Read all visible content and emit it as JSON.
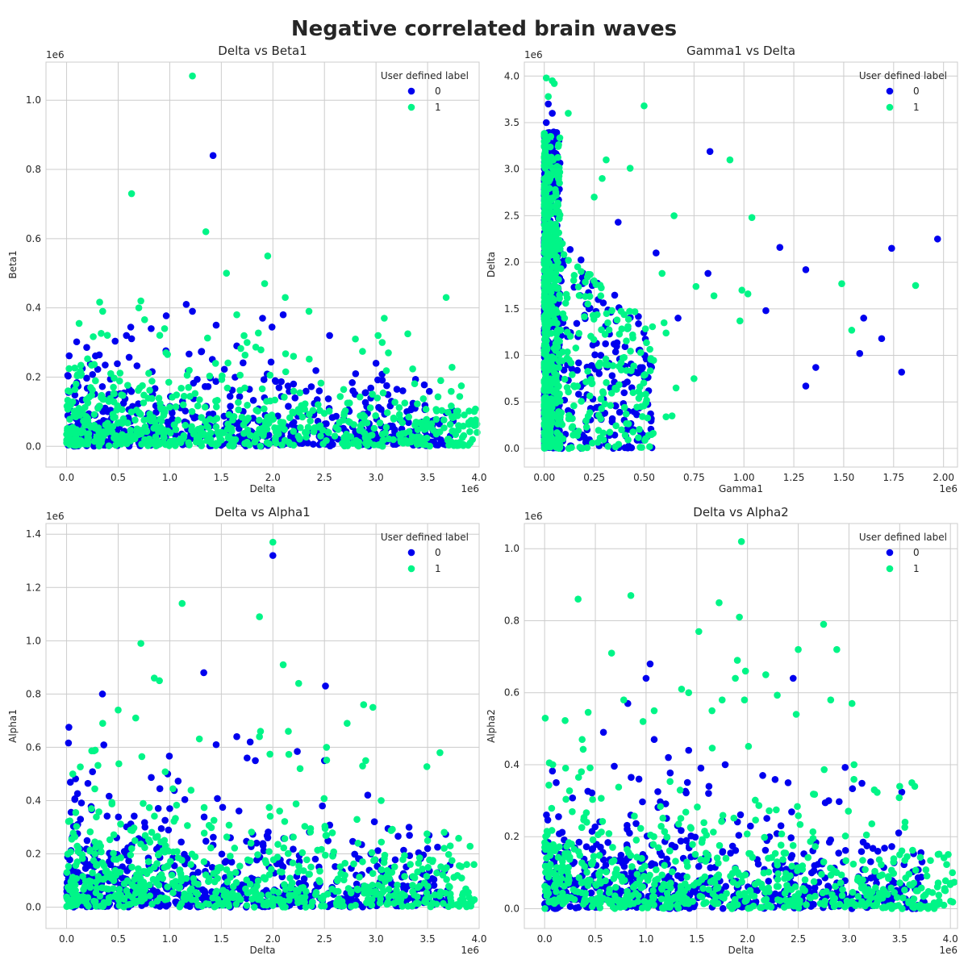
{
  "figure": {
    "title": "Negative correlated brain waves"
  },
  "colors": {
    "label_0": "#0000ee",
    "label_1": "#00f587",
    "grid": "#cccccc",
    "frame": "#cccccc"
  },
  "chart_data": [
    {
      "type": "scatter",
      "title": "Delta vs Beta1",
      "xlabel": "Delta",
      "ylabel": "Beta1",
      "x_exponent": "1e6",
      "y_exponent": "1e6",
      "xlim": [
        -0.2,
        4.0
      ],
      "ylim": [
        -0.06,
        1.11
      ],
      "xticks": [
        0.0,
        0.5,
        1.0,
        1.5,
        2.0,
        2.5,
        3.0,
        3.5,
        4.0
      ],
      "yticks": [
        0.0,
        0.2,
        0.4,
        0.6,
        0.8,
        1.0
      ],
      "grid": true,
      "legend": {
        "title": "User defined label",
        "position": "top-right",
        "entries": [
          "0",
          "1"
        ]
      },
      "series": [
        {
          "name": "0",
          "color": "#0000ee",
          "cluster": {
            "x_max": 3.75,
            "y_scale": 0.075
          },
          "points": [
            [
              1.42,
              0.84
            ],
            [
              1.16,
              0.41
            ],
            [
              1.22,
              0.39
            ],
            [
              2.1,
              0.38
            ],
            [
              1.9,
              0.37
            ],
            [
              2.55,
              0.32
            ],
            [
              0.58,
              0.32
            ],
            [
              0.82,
              0.34
            ],
            [
              1.45,
              0.35
            ],
            [
              1.65,
              0.29
            ],
            [
              3.0,
              0.24
            ],
            [
              3.15,
              0.13
            ],
            [
              3.25,
              0.05
            ],
            [
              3.35,
              0.04
            ],
            [
              3.6,
              0.04
            ],
            [
              3.72,
              0.03
            ],
            [
              3.7,
              0.01
            ],
            [
              3.3,
              0.1
            ],
            [
              2.45,
              0.16
            ],
            [
              2.2,
              0.18
            ]
          ]
        },
        {
          "name": "1",
          "color": "#00f587",
          "cluster": {
            "x_max": 3.98,
            "y_scale": 0.085
          },
          "points": [
            [
              1.22,
              1.07
            ],
            [
              0.63,
              0.73
            ],
            [
              1.35,
              0.62
            ],
            [
              1.95,
              0.55
            ],
            [
              1.55,
              0.5
            ],
            [
              1.92,
              0.47
            ],
            [
              3.68,
              0.43
            ],
            [
              2.12,
              0.43
            ],
            [
              0.72,
              0.42
            ],
            [
              0.7,
              0.4
            ],
            [
              2.35,
              0.39
            ],
            [
              0.35,
              0.39
            ],
            [
              1.65,
              0.38
            ],
            [
              3.08,
              0.37
            ],
            [
              0.95,
              0.34
            ],
            [
              1.75,
              0.3
            ],
            [
              3.02,
              0.32
            ],
            [
              3.06,
              0.3
            ],
            [
              2.8,
              0.31
            ],
            [
              3.12,
              0.27
            ],
            [
              2.2,
              0.26
            ],
            [
              3.95,
              0.07
            ],
            [
              3.98,
              0.04
            ],
            [
              3.8,
              0.06
            ],
            [
              3.5,
              0.06
            ]
          ]
        }
      ]
    },
    {
      "type": "scatter",
      "title": "Gamma1 vs Delta",
      "xlabel": "Gamma1",
      "ylabel": "Delta",
      "x_exponent": "1e6",
      "y_exponent": "1e6",
      "xlim": [
        -0.1,
        2.07
      ],
      "ylim": [
        -0.2,
        4.15
      ],
      "xticks": [
        0.0,
        0.25,
        0.5,
        0.75,
        1.0,
        1.25,
        1.5,
        1.75,
        2.0
      ],
      "yticks": [
        0.0,
        0.5,
        1.0,
        1.5,
        2.0,
        2.5,
        3.0,
        3.5,
        4.0
      ],
      "grid": true,
      "legend": {
        "title": "User defined label",
        "position": "top-right",
        "entries": [
          "0",
          "1"
        ]
      },
      "series": [
        {
          "name": "0",
          "color": "#0000ee",
          "points": [
            [
              0.83,
              3.19
            ],
            [
              1.97,
              2.25
            ],
            [
              1.18,
              2.16
            ],
            [
              1.74,
              2.15
            ],
            [
              1.31,
              1.92
            ],
            [
              0.56,
              2.1
            ],
            [
              0.82,
              1.88
            ],
            [
              1.11,
              1.48
            ],
            [
              1.6,
              1.4
            ],
            [
              0.67,
              1.4
            ],
            [
              1.69,
              1.18
            ],
            [
              1.58,
              1.02
            ],
            [
              1.36,
              0.87
            ],
            [
              1.79,
              0.82
            ],
            [
              1.31,
              0.67
            ],
            [
              0.37,
              2.43
            ],
            [
              0.02,
              3.7
            ],
            [
              0.04,
              3.6
            ],
            [
              0.01,
              3.5
            ],
            [
              0.02,
              3.38
            ],
            [
              0.03,
              3.25
            ],
            [
              0.36,
              1.37
            ],
            [
              0.27,
              1.6
            ],
            [
              0.24,
              1.75
            ]
          ]
        },
        {
          "name": "1",
          "color": "#00f587",
          "points": [
            [
              0.01,
              3.98
            ],
            [
              0.04,
              3.95
            ],
            [
              0.05,
              3.92
            ],
            [
              0.02,
              3.78
            ],
            [
              0.5,
              3.68
            ],
            [
              0.12,
              3.6
            ],
            [
              0.93,
              3.1
            ],
            [
              0.31,
              3.1
            ],
            [
              0.43,
              3.01
            ],
            [
              0.65,
              2.5
            ],
            [
              1.04,
              2.48
            ],
            [
              0.25,
              2.7
            ],
            [
              0.29,
              2.9
            ],
            [
              0.59,
              1.88
            ],
            [
              1.49,
              1.77
            ],
            [
              1.86,
              1.75
            ],
            [
              0.85,
              1.64
            ],
            [
              0.76,
              1.74
            ],
            [
              0.99,
              1.7
            ],
            [
              1.02,
              1.66
            ],
            [
              0.98,
              1.37
            ],
            [
              1.54,
              1.27
            ],
            [
              0.61,
              1.24
            ],
            [
              0.6,
              1.35
            ],
            [
              0.75,
              0.75
            ],
            [
              0.66,
              0.65
            ],
            [
              0.64,
              0.35
            ],
            [
              0.61,
              0.34
            ]
          ]
        }
      ]
    },
    {
      "type": "scatter",
      "title": "Delta vs Alpha1",
      "xlabel": "Delta",
      "ylabel": "Alpha1",
      "x_exponent": "1e6",
      "y_exponent": "1e6",
      "xlim": [
        -0.2,
        4.0
      ],
      "ylim": [
        -0.08,
        1.44
      ],
      "xticks": [
        0.0,
        0.5,
        1.0,
        1.5,
        2.0,
        2.5,
        3.0,
        3.5,
        4.0
      ],
      "yticks": [
        0.0,
        0.2,
        0.4,
        0.6,
        0.8,
        1.0,
        1.2,
        1.4
      ],
      "grid": true,
      "legend": {
        "title": "User defined label",
        "position": "top-right",
        "entries": [
          "0",
          "1"
        ]
      },
      "series": [
        {
          "name": "0",
          "color": "#0000ee",
          "cluster": {
            "x_max": 3.72,
            "y_scale": 0.12
          },
          "points": [
            [
              2.0,
              1.32
            ],
            [
              1.33,
              0.88
            ],
            [
              2.51,
              0.83
            ],
            [
              1.65,
              0.64
            ],
            [
              1.78,
              0.62
            ],
            [
              1.45,
              0.61
            ],
            [
              1.75,
              0.56
            ],
            [
              2.5,
              0.55
            ],
            [
              1.83,
              0.55
            ],
            [
              3.32,
              0.3
            ],
            [
              3.5,
              0.22
            ],
            [
              3.7,
              0.04
            ],
            [
              3.72,
              0.01
            ],
            [
              2.95,
              0.2
            ],
            [
              2.48,
              0.38
            ],
            [
              1.0,
              0.37
            ],
            [
              0.98,
              0.5
            ]
          ]
        },
        {
          "name": "1",
          "color": "#00f587",
          "cluster": {
            "x_max": 3.96,
            "y_scale": 0.14
          },
          "points": [
            [
              2.0,
              1.37
            ],
            [
              1.12,
              1.14
            ],
            [
              1.87,
              1.09
            ],
            [
              0.72,
              0.99
            ],
            [
              2.1,
              0.91
            ],
            [
              0.85,
              0.86
            ],
            [
              0.9,
              0.85
            ],
            [
              2.25,
              0.84
            ],
            [
              2.97,
              0.75
            ],
            [
              2.88,
              0.76
            ],
            [
              0.5,
              0.74
            ],
            [
              0.67,
              0.71
            ],
            [
              0.35,
              0.69
            ],
            [
              2.72,
              0.69
            ],
            [
              1.88,
              0.66
            ],
            [
              2.15,
              0.66
            ],
            [
              1.87,
              0.64
            ],
            [
              3.62,
              0.58
            ],
            [
              2.9,
              0.55
            ],
            [
              2.87,
              0.53
            ],
            [
              2.52,
              0.6
            ],
            [
              0.06,
              0.5
            ],
            [
              3.05,
              0.4
            ],
            [
              3.95,
              0.16
            ],
            [
              3.88,
              0.16
            ],
            [
              3.93,
              0.02
            ],
            [
              3.5,
              0.25
            ],
            [
              3.72,
              0.23
            ]
          ]
        }
      ]
    },
    {
      "type": "scatter",
      "title": "Delta vs Alpha2",
      "xlabel": "Delta",
      "ylabel": "Alpha2",
      "x_exponent": "1e6",
      "y_exponent": "1e6",
      "xlim": [
        -0.2,
        4.07
      ],
      "ylim": [
        -0.055,
        1.07
      ],
      "xticks": [
        0.0,
        0.5,
        1.0,
        1.5,
        2.0,
        2.5,
        3.0,
        3.5,
        4.0
      ],
      "yticks": [
        0.0,
        0.2,
        0.4,
        0.6,
        0.8,
        1.0
      ],
      "grid": true,
      "legend": {
        "title": "User defined label",
        "position": "top-right",
        "entries": [
          "0",
          "1"
        ]
      },
      "series": [
        {
          "name": "0",
          "color": "#0000ee",
          "cluster": {
            "x_max": 3.75,
            "y_scale": 0.1
          },
          "points": [
            [
              1.04,
              0.68
            ],
            [
              1.0,
              0.64
            ],
            [
              2.45,
              0.64
            ],
            [
              0.82,
              0.57
            ],
            [
              0.58,
              0.49
            ],
            [
              1.08,
              0.47
            ],
            [
              1.42,
              0.44
            ],
            [
              1.22,
              0.42
            ],
            [
              1.78,
              0.4
            ],
            [
              3.72,
              0.13
            ],
            [
              3.7,
              0.01
            ],
            [
              3.73,
              0.02
            ],
            [
              2.4,
              0.35
            ],
            [
              2.8,
              0.3
            ],
            [
              2.15,
              0.37
            ],
            [
              0.93,
              0.36
            ],
            [
              1.62,
              0.34
            ]
          ]
        },
        {
          "name": "1",
          "color": "#00f587",
          "cluster": {
            "x_max": 4.05,
            "y_scale": 0.11
          },
          "points": [
            [
              1.94,
              1.02
            ],
            [
              0.85,
              0.87
            ],
            [
              0.33,
              0.86
            ],
            [
              1.72,
              0.85
            ],
            [
              1.92,
              0.81
            ],
            [
              2.75,
              0.79
            ],
            [
              1.52,
              0.77
            ],
            [
              2.88,
              0.72
            ],
            [
              2.5,
              0.72
            ],
            [
              0.66,
              0.71
            ],
            [
              1.9,
              0.69
            ],
            [
              1.98,
              0.66
            ],
            [
              2.18,
              0.65
            ],
            [
              1.88,
              0.64
            ],
            [
              1.35,
              0.61
            ],
            [
              1.42,
              0.6
            ],
            [
              0.78,
              0.58
            ],
            [
              1.75,
              0.58
            ],
            [
              1.97,
              0.58
            ],
            [
              2.82,
              0.58
            ],
            [
              3.03,
              0.57
            ],
            [
              1.65,
              0.55
            ],
            [
              1.08,
              0.55
            ],
            [
              2.48,
              0.54
            ],
            [
              0.97,
              0.52
            ],
            [
              0.37,
              0.47
            ],
            [
              0.08,
              0.4
            ],
            [
              3.05,
              0.4
            ],
            [
              3.5,
              0.34
            ],
            [
              3.62,
              0.35
            ],
            [
              3.25,
              0.33
            ],
            [
              4.02,
              0.1
            ],
            [
              4.0,
              0.07
            ],
            [
              3.95,
              0.05
            ],
            [
              3.5,
              0.15
            ]
          ]
        }
      ]
    }
  ]
}
